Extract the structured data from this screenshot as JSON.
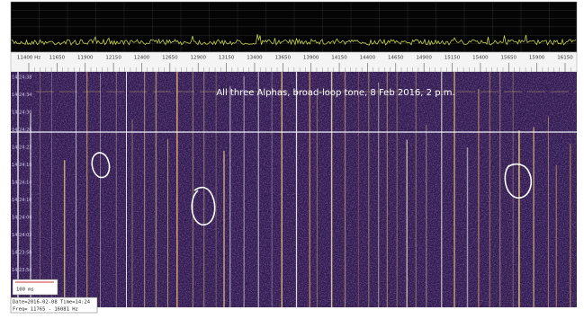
{
  "annotation": "All three Alphas, broad-loop tone, 8 Feb 2016, 2 p.m.",
  "frequency_labels": [
    "11400 Hz",
    "11650",
    "11900",
    "12150",
    "12400",
    "12650",
    "12900",
    "13150",
    "13400",
    "13650",
    "13900",
    "14150",
    "14400",
    "14650",
    "14900",
    "15150",
    "15400",
    "15650",
    "15900",
    "16150"
  ],
  "time_labels": [
    "14:24:38",
    "14:24:34",
    "14:24:30",
    "14:24:26",
    "14:24:22",
    "14:24:18",
    "14:24:14",
    "14:24:10",
    "14:24:06",
    "14:24:02",
    "14:23:58",
    "14:23:54"
  ],
  "scale_label": "100 ms",
  "info": {
    "line1": "Date=2016-02-08 Time=14:24",
    "line2": "Freq= 11765 - 16081 Hz"
  }
}
